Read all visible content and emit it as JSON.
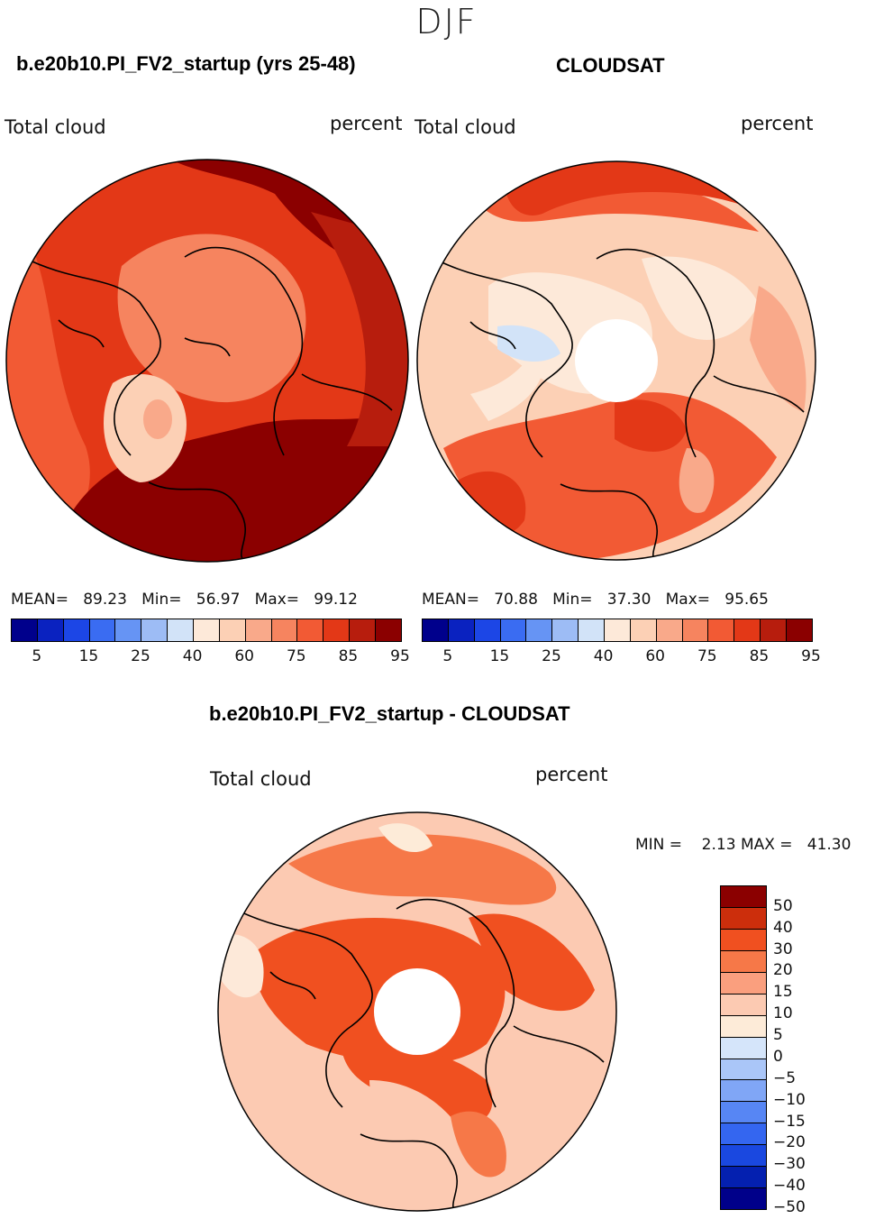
{
  "season": "DJF",
  "colors": {
    "model_cmap": [
      "#00008c",
      "#0a22c0",
      "#1c46e6",
      "#3a6cf2",
      "#6694f4",
      "#9dbcf5",
      "#d2e3f8",
      "#fde9d9",
      "#fcd0b5",
      "#f9a98a",
      "#f6845f",
      "#f25a34",
      "#e33817",
      "#b71d0d",
      "#8b0000"
    ],
    "diff_cmap": [
      "#00008a",
      "#0420b0",
      "#1a48e0",
      "#3466f0",
      "#5786f4",
      "#80a6f6",
      "#aac6f8",
      "#d5e5fa",
      "#fdebd8",
      "#fccab2",
      "#fa9f7e",
      "#f67848",
      "#f05020",
      "#cc2e0c",
      "#8b0000"
    ]
  },
  "chart_data": [
    {
      "type": "heatmap",
      "projection": "north-polar-stereographic",
      "title": "b.e20b10.PI_FV2_startup (yrs 25-48)",
      "left_label": "Total cloud",
      "right_label": "percent",
      "stats": {
        "mean_label": "MEAN=",
        "mean": "89.23",
        "min_label": "Min=",
        "min": "56.97",
        "max_label": "Max=",
        "max": "99.12"
      },
      "colorbar_ticks": [
        "5",
        "15",
        "25",
        "40",
        "60",
        "75",
        "85",
        "95"
      ],
      "color_range": [
        0,
        100
      ],
      "has_missing_pole": false
    },
    {
      "type": "heatmap",
      "projection": "north-polar-stereographic",
      "title": "CLOUDSAT",
      "left_label": "Total cloud",
      "right_label": "percent",
      "stats": {
        "mean_label": "MEAN=",
        "mean": "70.88",
        "min_label": "Min=",
        "min": "37.30",
        "max_label": "Max=",
        "max": "95.65"
      },
      "colorbar_ticks": [
        "5",
        "15",
        "25",
        "40",
        "60",
        "75",
        "85",
        "95"
      ],
      "color_range": [
        0,
        100
      ],
      "has_missing_pole": true
    },
    {
      "type": "heatmap",
      "projection": "north-polar-stereographic",
      "title": "b.e20b10.PI_FV2_startup - CLOUDSAT",
      "left_label": "Total cloud",
      "right_label": "percent",
      "stats": {
        "min_label": "MIN =",
        "min": "2.13",
        "max_label": "MAX =",
        "max": "41.30"
      },
      "colorbar_ticks": [
        "50",
        "40",
        "30",
        "20",
        "15",
        "10",
        "5",
        "0",
        "−5",
        "−10",
        "−15",
        "−20",
        "−30",
        "−40",
        "−50"
      ],
      "has_missing_pole": true
    }
  ]
}
